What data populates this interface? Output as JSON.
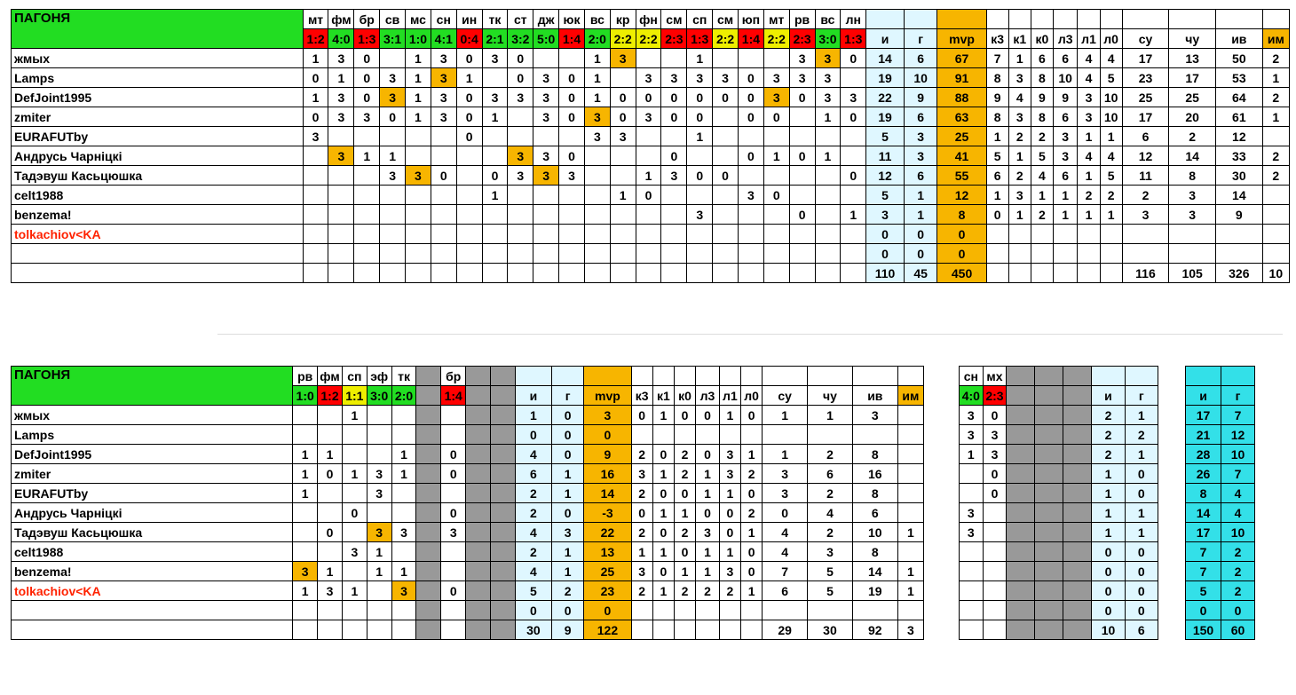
{
  "colors": {
    "green": "#22dd22",
    "red": "#ff0000",
    "yellow": "#eeee00",
    "light_blue": "#dff7ff",
    "gold": "#f7b500",
    "gray": "#999999",
    "cyan": "#33e0e8",
    "highlight_text": "#ff2200"
  },
  "table1": {
    "title": "ПАГОНЯ",
    "matches": [
      "мт",
      "фм",
      "бр",
      "св",
      "мс",
      "сн",
      "ин",
      "тк",
      "ст",
      "дж",
      "юк",
      "вс",
      "кр",
      "фн",
      "см",
      "сп",
      "см",
      "юп",
      "мт",
      "рв",
      "вс",
      "лн"
    ],
    "scores": [
      {
        "s": "1:2",
        "c": "red"
      },
      {
        "s": "4:0",
        "c": "green"
      },
      {
        "s": "1:3",
        "c": "red"
      },
      {
        "s": "3:1",
        "c": "green"
      },
      {
        "s": "1:0",
        "c": "green"
      },
      {
        "s": "4:1",
        "c": "green"
      },
      {
        "s": "0:4",
        "c": "red"
      },
      {
        "s": "2:1",
        "c": "green"
      },
      {
        "s": "3:2",
        "c": "green"
      },
      {
        "s": "5:0",
        "c": "green"
      },
      {
        "s": "1:4",
        "c": "red"
      },
      {
        "s": "2:0",
        "c": "green"
      },
      {
        "s": "2:2",
        "c": "yel"
      },
      {
        "s": "2:2",
        "c": "yel"
      },
      {
        "s": "2:3",
        "c": "red"
      },
      {
        "s": "1:3",
        "c": "red"
      },
      {
        "s": "2:2",
        "c": "yel"
      },
      {
        "s": "1:4",
        "c": "red"
      },
      {
        "s": "2:2",
        "c": "yel"
      },
      {
        "s": "2:3",
        "c": "red"
      },
      {
        "s": "3:0",
        "c": "green"
      },
      {
        "s": "1:3",
        "c": "red"
      }
    ],
    "stat_headers": [
      "и",
      "г",
      "mvp",
      "к3",
      "к1",
      "к0",
      "л3",
      "л1",
      "л0",
      "су",
      "чу",
      "ив",
      "им"
    ],
    "rows": [
      {
        "name": "жмых",
        "red": false,
        "m": [
          "1",
          "3",
          "0",
          "",
          "1",
          "3",
          "0",
          "3",
          "0",
          "",
          "",
          "1",
          "3",
          "",
          "",
          "1",
          "",
          "",
          "",
          "3",
          "3",
          "0"
        ],
        "hl": [
          12,
          20
        ],
        "st": [
          "14",
          "6",
          "67",
          "7",
          "1",
          "6",
          "6",
          "4",
          "4",
          "17",
          "13",
          "50",
          "2"
        ]
      },
      {
        "name": "Lamps",
        "red": false,
        "m": [
          "0",
          "1",
          "0",
          "3",
          "1",
          "3",
          "1",
          "",
          "0",
          "3",
          "0",
          "1",
          "",
          "3",
          "3",
          "3",
          "3",
          "0",
          "3",
          "3",
          "3",
          ""
        ],
        "hl": [
          5
        ],
        "st": [
          "19",
          "10",
          "91",
          "8",
          "3",
          "8",
          "10",
          "4",
          "5",
          "23",
          "17",
          "53",
          "1"
        ]
      },
      {
        "name": "DefJoint1995",
        "red": false,
        "m": [
          "1",
          "3",
          "0",
          "3",
          "1",
          "3",
          "0",
          "3",
          "3",
          "3",
          "0",
          "1",
          "0",
          "0",
          "0",
          "0",
          "0",
          "0",
          "3",
          "0",
          "3",
          "3"
        ],
        "hl": [
          3,
          18
        ],
        "st": [
          "22",
          "9",
          "88",
          "9",
          "4",
          "9",
          "9",
          "3",
          "10",
          "25",
          "25",
          "64",
          "2"
        ]
      },
      {
        "name": "zmiter",
        "red": false,
        "m": [
          "0",
          "3",
          "3",
          "0",
          "1",
          "3",
          "0",
          "1",
          "",
          "3",
          "0",
          "3",
          "0",
          "3",
          "0",
          "0",
          "",
          "0",
          "0",
          "",
          "1",
          "0"
        ],
        "hl": [
          11
        ],
        "st": [
          "19",
          "6",
          "63",
          "8",
          "3",
          "8",
          "6",
          "3",
          "10",
          "17",
          "20",
          "61",
          "1"
        ]
      },
      {
        "name": "EURAFUTby",
        "red": false,
        "m": [
          "3",
          "",
          "",
          "",
          "",
          "",
          "0",
          "",
          "",
          "",
          "",
          "3",
          "3",
          "",
          "",
          "1",
          "",
          "",
          "",
          "",
          "",
          ""
        ],
        "hl": [],
        "st": [
          "5",
          "3",
          "25",
          "1",
          "2",
          "2",
          "3",
          "1",
          "1",
          "6",
          "2",
          "12",
          ""
        ]
      },
      {
        "name": "Андрусь Чарніцкі",
        "red": false,
        "m": [
          "",
          "3",
          "1",
          "1",
          "",
          "",
          "",
          "",
          "3",
          "3",
          "0",
          "",
          "",
          "",
          "0",
          "",
          "",
          "0",
          "1",
          "0",
          "1",
          ""
        ],
        "hl": [
          1,
          8
        ],
        "st": [
          "11",
          "3",
          "41",
          "5",
          "1",
          "5",
          "3",
          "4",
          "4",
          "12",
          "14",
          "33",
          "2"
        ]
      },
      {
        "name": "Тадэвуш Касьцюшка",
        "red": false,
        "m": [
          "",
          "",
          "",
          "3",
          "3",
          "0",
          "",
          "0",
          "3",
          "3",
          "3",
          "",
          "",
          "1",
          "3",
          "0",
          "0",
          "",
          "",
          "",
          "",
          "0"
        ],
        "hl": [
          4,
          9
        ],
        "st": [
          "12",
          "6",
          "55",
          "6",
          "2",
          "4",
          "6",
          "1",
          "5",
          "11",
          "8",
          "30",
          "2"
        ]
      },
      {
        "name": "celt1988",
        "red": false,
        "m": [
          "",
          "",
          "",
          "",
          "",
          "",
          "",
          "1",
          "",
          "",
          "",
          "",
          "1",
          "0",
          "",
          "",
          "",
          "3",
          "0",
          "",
          "",
          ""
        ],
        "hl": [],
        "st": [
          "5",
          "1",
          "12",
          "1",
          "3",
          "1",
          "1",
          "2",
          "2",
          "2",
          "3",
          "14",
          ""
        ]
      },
      {
        "name": "benzema!",
        "red": false,
        "m": [
          "",
          "",
          "",
          "",
          "",
          "",
          "",
          "",
          "",
          "",
          "",
          "",
          "",
          "",
          "",
          "3",
          "",
          "",
          "",
          "0",
          "",
          "1"
        ],
        "hl": [],
        "st": [
          "3",
          "1",
          "8",
          "0",
          "1",
          "2",
          "1",
          "1",
          "1",
          "3",
          "3",
          "9",
          ""
        ]
      },
      {
        "name": "tolkachiov<KA",
        "red": true,
        "m": [
          "",
          "",
          "",
          "",
          "",
          "",
          "",
          "",
          "",
          "",
          "",
          "",
          "",
          "",
          "",
          "",
          "",
          "",
          "",
          "",
          "",
          ""
        ],
        "hl": [],
        "st": [
          "0",
          "0",
          "0",
          "",
          "",
          "",
          "",
          "",
          "",
          "",
          "",
          "",
          ""
        ]
      },
      {
        "name": "",
        "red": false,
        "m": [
          "",
          "",
          "",
          "",
          "",
          "",
          "",
          "",
          "",
          "",
          "",
          "",
          "",
          "",
          "",
          "",
          "",
          "",
          "",
          "",
          "",
          ""
        ],
        "hl": [],
        "st": [
          "0",
          "0",
          "0",
          "",
          "",
          "",
          "",
          "",
          "",
          "",
          "",
          "",
          ""
        ]
      },
      {
        "name": "",
        "red": false,
        "m": [
          "",
          "",
          "",
          "",
          "",
          "",
          "",
          "",
          "",
          "",
          "",
          "",
          "",
          "",
          "",
          "",
          "",
          "",
          "",
          "",
          "",
          ""
        ],
        "hl": [],
        "st": [
          "110",
          "45",
          "450",
          "",
          "",
          "",
          "",
          "",
          "",
          "116",
          "105",
          "326",
          "10"
        ]
      }
    ]
  },
  "table2": {
    "title": "ПАГОНЯ",
    "matches": [
      "рв",
      "фм",
      "сп",
      "эф",
      "тк",
      "",
      "бр",
      "",
      ""
    ],
    "scores": [
      {
        "s": "1:0",
        "c": "green"
      },
      {
        "s": "1:2",
        "c": "red"
      },
      {
        "s": "1:1",
        "c": "yel"
      },
      {
        "s": "3:0",
        "c": "green"
      },
      {
        "s": "2:0",
        "c": "green"
      },
      {
        "s": "",
        "c": "gray"
      },
      {
        "s": "1:4",
        "c": "red"
      },
      {
        "s": "",
        "c": "gray"
      },
      {
        "s": "",
        "c": "gray"
      }
    ],
    "stat_headers": [
      "и",
      "г",
      "mvp",
      "к3",
      "к1",
      "к0",
      "л3",
      "л1",
      "л0",
      "су",
      "чу",
      "ив",
      "им"
    ],
    "rows": [
      {
        "name": "жмых",
        "red": false,
        "m": [
          "",
          "",
          "1",
          "",
          "",
          "",
          "",
          "",
          ""
        ],
        "hl": [],
        "st": [
          "1",
          "0",
          "3",
          "0",
          "1",
          "0",
          "0",
          "1",
          "0",
          "1",
          "1",
          "3",
          ""
        ]
      },
      {
        "name": "Lamps",
        "red": false,
        "m": [
          "",
          "",
          "",
          "",
          "",
          "",
          "",
          "",
          ""
        ],
        "hl": [],
        "st": [
          "0",
          "0",
          "0",
          "",
          "",
          "",
          "",
          "",
          "",
          "",
          "",
          "",
          ""
        ]
      },
      {
        "name": "DefJoint1995",
        "red": false,
        "m": [
          "1",
          "1",
          "",
          "",
          "1",
          "",
          "0",
          "",
          ""
        ],
        "hl": [],
        "st": [
          "4",
          "0",
          "9",
          "2",
          "0",
          "2",
          "0",
          "3",
          "1",
          "1",
          "2",
          "8",
          ""
        ]
      },
      {
        "name": "zmiter",
        "red": false,
        "m": [
          "1",
          "0",
          "1",
          "3",
          "1",
          "",
          "0",
          "",
          ""
        ],
        "hl": [],
        "st": [
          "6",
          "1",
          "16",
          "3",
          "1",
          "2",
          "1",
          "3",
          "2",
          "3",
          "6",
          "16",
          ""
        ]
      },
      {
        "name": "EURAFUTby",
        "red": false,
        "m": [
          "1",
          "",
          "",
          "3",
          "",
          "",
          "",
          "",
          ""
        ],
        "hl": [],
        "st": [
          "2",
          "1",
          "14",
          "2",
          "0",
          "0",
          "1",
          "1",
          "0",
          "3",
          "2",
          "8",
          ""
        ]
      },
      {
        "name": "Андрусь Чарніцкі",
        "red": false,
        "m": [
          "",
          "",
          "0",
          "",
          "",
          "",
          "0",
          "",
          ""
        ],
        "hl": [],
        "st": [
          "2",
          "0",
          "-3",
          "0",
          "1",
          "1",
          "0",
          "0",
          "2",
          "0",
          "4",
          "6",
          ""
        ]
      },
      {
        "name": "Тадэвуш Касьцюшка",
        "red": false,
        "m": [
          "",
          "0",
          "",
          "3",
          "3",
          "",
          "3",
          "",
          ""
        ],
        "hl": [
          3
        ],
        "st": [
          "4",
          "3",
          "22",
          "2",
          "0",
          "2",
          "3",
          "0",
          "1",
          "4",
          "2",
          "10",
          "1"
        ]
      },
      {
        "name": "celt1988",
        "red": false,
        "m": [
          "",
          "",
          "3",
          "1",
          "",
          "",
          "",
          "",
          ""
        ],
        "hl": [],
        "st": [
          "2",
          "1",
          "13",
          "1",
          "1",
          "0",
          "1",
          "1",
          "0",
          "4",
          "3",
          "8",
          ""
        ]
      },
      {
        "name": "benzema!",
        "red": false,
        "m": [
          "3",
          "1",
          "",
          "1",
          "1",
          "",
          "",
          "",
          ""
        ],
        "hl": [
          0
        ],
        "st": [
          "4",
          "1",
          "25",
          "3",
          "0",
          "1",
          "1",
          "3",
          "0",
          "7",
          "5",
          "14",
          "1"
        ]
      },
      {
        "name": "tolkachiov<KA",
        "red": true,
        "m": [
          "1",
          "3",
          "1",
          "",
          "3",
          "",
          "0",
          "",
          ""
        ],
        "hl": [
          4
        ],
        "st": [
          "5",
          "2",
          "23",
          "2",
          "1",
          "2",
          "2",
          "2",
          "1",
          "6",
          "5",
          "19",
          "1"
        ]
      },
      {
        "name": "",
        "red": false,
        "m": [
          "",
          "",
          "",
          "",
          "",
          "",
          "",
          "",
          ""
        ],
        "hl": [],
        "st": [
          "0",
          "0",
          "0",
          "",
          "",
          "",
          "",
          "",
          "",
          "",
          "",
          "",
          ""
        ]
      },
      {
        "name": "",
        "red": false,
        "m": [
          "",
          "",
          "",
          "",
          "",
          "",
          "",
          "",
          ""
        ],
        "hl": [],
        "st": [
          "30",
          "9",
          "122",
          "",
          "",
          "",
          "",
          "",
          "",
          "29",
          "30",
          "92",
          "3"
        ]
      }
    ]
  },
  "table3": {
    "matches": [
      "сн",
      "мх",
      "",
      "",
      ""
    ],
    "scores": [
      {
        "s": "4:0",
        "c": "green"
      },
      {
        "s": "2:3",
        "c": "red"
      },
      {
        "s": "",
        "c": "gray"
      },
      {
        "s": "",
        "c": "gray"
      },
      {
        "s": "",
        "c": "gray"
      }
    ],
    "stat_headers": [
      "и",
      "г"
    ],
    "rows": [
      {
        "m": [
          "3",
          "0",
          "",
          "",
          ""
        ],
        "st": [
          "2",
          "1"
        ]
      },
      {
        "m": [
          "3",
          "3",
          "",
          "",
          ""
        ],
        "st": [
          "2",
          "2"
        ]
      },
      {
        "m": [
          "1",
          "3",
          "",
          "",
          ""
        ],
        "st": [
          "2",
          "1"
        ]
      },
      {
        "m": [
          "",
          "0",
          "",
          "",
          ""
        ],
        "st": [
          "1",
          "0"
        ]
      },
      {
        "m": [
          "",
          "0",
          "",
          "",
          ""
        ],
        "st": [
          "1",
          "0"
        ]
      },
      {
        "m": [
          "3",
          "",
          "",
          "",
          ""
        ],
        "st": [
          "1",
          "1"
        ]
      },
      {
        "m": [
          "3",
          "",
          "",
          "",
          ""
        ],
        "st": [
          "1",
          "1"
        ]
      },
      {
        "m": [
          "",
          "",
          "",
          "",
          ""
        ],
        "st": [
          "0",
          "0"
        ]
      },
      {
        "m": [
          "",
          "",
          "",
          "",
          ""
        ],
        "st": [
          "0",
          "0"
        ]
      },
      {
        "m": [
          "",
          "",
          "",
          "",
          ""
        ],
        "st": [
          "0",
          "0"
        ]
      },
      {
        "m": [
          "",
          "",
          "",
          "",
          ""
        ],
        "st": [
          "0",
          "0"
        ]
      },
      {
        "m": [
          "",
          "",
          "",
          "",
          ""
        ],
        "st": [
          "10",
          "6"
        ]
      }
    ]
  },
  "table4": {
    "stat_headers": [
      "и",
      "г"
    ],
    "rows": [
      [
        "17",
        "7"
      ],
      [
        "21",
        "12"
      ],
      [
        "28",
        "10"
      ],
      [
        "26",
        "7"
      ],
      [
        "8",
        "4"
      ],
      [
        "14",
        "4"
      ],
      [
        "17",
        "10"
      ],
      [
        "7",
        "2"
      ],
      [
        "7",
        "2"
      ],
      [
        "5",
        "2"
      ],
      [
        "0",
        "0"
      ],
      [
        "150",
        "60"
      ]
    ]
  }
}
